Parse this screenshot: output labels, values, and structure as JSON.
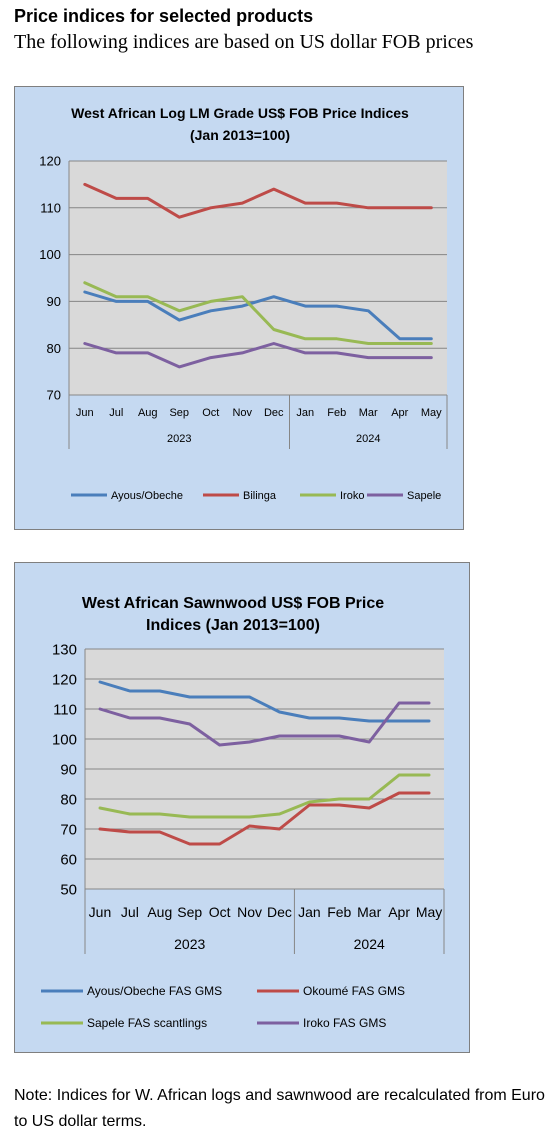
{
  "header": {
    "title": "Price indices for selected products",
    "subtitle": "The following indices are based on US dollar FOB prices"
  },
  "note": "Note: Indices for W. African logs and sawnwood are recalculated from Euro to US dollar terms.",
  "chart_data": [
    {
      "type": "line",
      "title_lines": [
        "West African Log LM Grade US$ FOB Price Indices",
        "(Jan 2013=100)"
      ],
      "categories": [
        "Jun",
        "Jul",
        "Aug",
        "Sep",
        "Oct",
        "Nov",
        "Dec",
        "Jan",
        "Feb",
        "Mar",
        "Apr",
        "May"
      ],
      "year_groups": [
        {
          "label": "2023",
          "count": 7
        },
        {
          "label": "2024",
          "count": 5
        }
      ],
      "ylim": [
        70,
        120
      ],
      "yticks": [
        70,
        80,
        90,
        100,
        110,
        120
      ],
      "grid": true,
      "legend_position": "bottom",
      "series": [
        {
          "name": "Ayous/Obeche",
          "color": "#4a7ebb",
          "values": [
            92,
            90,
            90,
            86,
            88,
            89,
            91,
            89,
            89,
            88,
            82,
            82
          ]
        },
        {
          "name": "Bilinga",
          "color": "#be4b48",
          "values": [
            115,
            112,
            112,
            108,
            110,
            111,
            114,
            111,
            111,
            110,
            110,
            110
          ]
        },
        {
          "name": "Iroko",
          "color": "#98b954",
          "values": [
            94,
            91,
            91,
            88,
            90,
            91,
            84,
            82,
            82,
            81,
            81,
            81
          ]
        },
        {
          "name": "Sapele",
          "color": "#7d60a0",
          "values": [
            81,
            79,
            79,
            76,
            78,
            79,
            81,
            79,
            79,
            78,
            78,
            78
          ]
        }
      ]
    },
    {
      "type": "line",
      "title_lines": [
        "West African Sawnwood US$ FOB Price",
        "Indices (Jan 2013=100)"
      ],
      "categories": [
        "Jun",
        "Jul",
        "Aug",
        "Sep",
        "Oct",
        "Nov",
        "Dec",
        "Jan",
        "Feb",
        "Mar",
        "Apr",
        "May"
      ],
      "year_groups": [
        {
          "label": "2023",
          "count": 7
        },
        {
          "label": "2024",
          "count": 5
        }
      ],
      "ylim": [
        50,
        130
      ],
      "yticks": [
        50,
        60,
        70,
        80,
        90,
        100,
        110,
        120,
        130
      ],
      "grid": true,
      "legend_position": "bottom",
      "series": [
        {
          "name": "Ayous/Obeche  FAS GMS",
          "color": "#4a7ebb",
          "values": [
            119,
            116,
            116,
            114,
            114,
            114,
            109,
            107,
            107,
            106,
            106,
            106
          ]
        },
        {
          "name": "Okoumé  FAS GMS",
          "color": "#be4b48",
          "values": [
            70,
            69,
            69,
            65,
            65,
            71,
            70,
            78,
            78,
            77,
            82,
            82
          ]
        },
        {
          "name": "Sapele FAS scantlings",
          "color": "#98b954",
          "values": [
            77,
            75,
            75,
            74,
            74,
            74,
            75,
            79,
            80,
            80,
            88,
            88
          ]
        },
        {
          "name": "Iroko FAS GMS",
          "color": "#7d60a0",
          "values": [
            110,
            107,
            107,
            105,
            98,
            99,
            101,
            101,
            101,
            99,
            112,
            112
          ]
        }
      ]
    }
  ]
}
